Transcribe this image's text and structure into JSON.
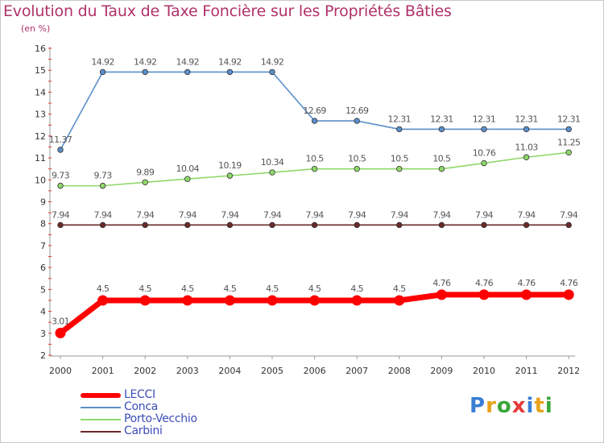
{
  "title": "Evolution du Taux de Taxe Foncière sur les Propriétés Bâties",
  "subtitle": "(en %)",
  "chart_data": {
    "type": "line",
    "title": "Evolution du Taux de Taxe Foncière sur les Propriétés Bâties",
    "ylabel": "(en %)",
    "xlabel": "",
    "ylim": [
      2,
      16
    ],
    "grid": false,
    "x": [
      "2000",
      "2001",
      "2002",
      "2003",
      "2004",
      "2005",
      "2006",
      "2007",
      "2008",
      "2009",
      "2010",
      "2011",
      "2012"
    ],
    "series": [
      {
        "name": "LECCI",
        "color": "#ff0000",
        "values": [
          3.01,
          4.5,
          4.5,
          4.5,
          4.5,
          4.5,
          4.5,
          4.5,
          4.5,
          4.76,
          4.76,
          4.76,
          4.76
        ],
        "labels": [
          "3.01",
          "4.5",
          "4.5",
          "4.5",
          "4.5",
          "4.5",
          "4.5",
          "4.5",
          "4.5",
          "4.76",
          "4.76",
          "4.76",
          "4.76"
        ]
      },
      {
        "name": "Conca",
        "color": "#5b8fc9",
        "values": [
          11.37,
          14.92,
          14.92,
          14.92,
          14.92,
          14.92,
          12.69,
          12.69,
          12.31,
          12.31,
          12.31,
          12.31,
          12.31
        ],
        "labels": [
          "11.37",
          "14.92",
          "14.92",
          "14.92",
          "14.92",
          "14.92",
          "12.69",
          "12.69",
          "12.31",
          "12.31",
          "12.31",
          "12.31",
          "12.31"
        ]
      },
      {
        "name": "Porto-Vecchio",
        "color": "#8fd86a",
        "values": [
          9.73,
          9.73,
          9.89,
          10.04,
          10.19,
          10.34,
          10.5,
          10.5,
          10.5,
          10.5,
          10.76,
          11.03,
          11.25
        ],
        "labels": [
          "9.73",
          "9.73",
          "9.89",
          "10.04",
          "10.19",
          "10.34",
          "10.5",
          "10.5",
          "10.5",
          "10.5",
          "10.76",
          "11.03",
          "11.25"
        ]
      },
      {
        "name": "Carbini",
        "color": "#6b2a2a",
        "values": [
          7.94,
          7.94,
          7.94,
          7.94,
          7.94,
          7.94,
          7.94,
          7.94,
          7.94,
          7.94,
          7.94,
          7.94,
          7.94
        ],
        "labels": [
          "7.94",
          "7.94",
          "7.94",
          "7.94",
          "7.94",
          "7.94",
          "7.94",
          "7.94",
          "7.94",
          "7.94",
          "7.94",
          "7.94",
          "7.94"
        ]
      }
    ],
    "legend_position": "bottom-left"
  },
  "legend": [
    {
      "label": "LECCI",
      "color": "#ff0000"
    },
    {
      "label": "Conca",
      "color": "#5b8fc9"
    },
    {
      "label": "Porto-Vecchio",
      "color": "#8fd86a"
    },
    {
      "label": "Carbini",
      "color": "#6b2a2a"
    }
  ],
  "logo": {
    "text": "Proxiti",
    "colors": [
      "#3a7fd5",
      "#e8a21a",
      "#3aa63a",
      "#e83a3a",
      "#3a7fd5",
      "#e8a21a",
      "#3aa63a"
    ]
  }
}
